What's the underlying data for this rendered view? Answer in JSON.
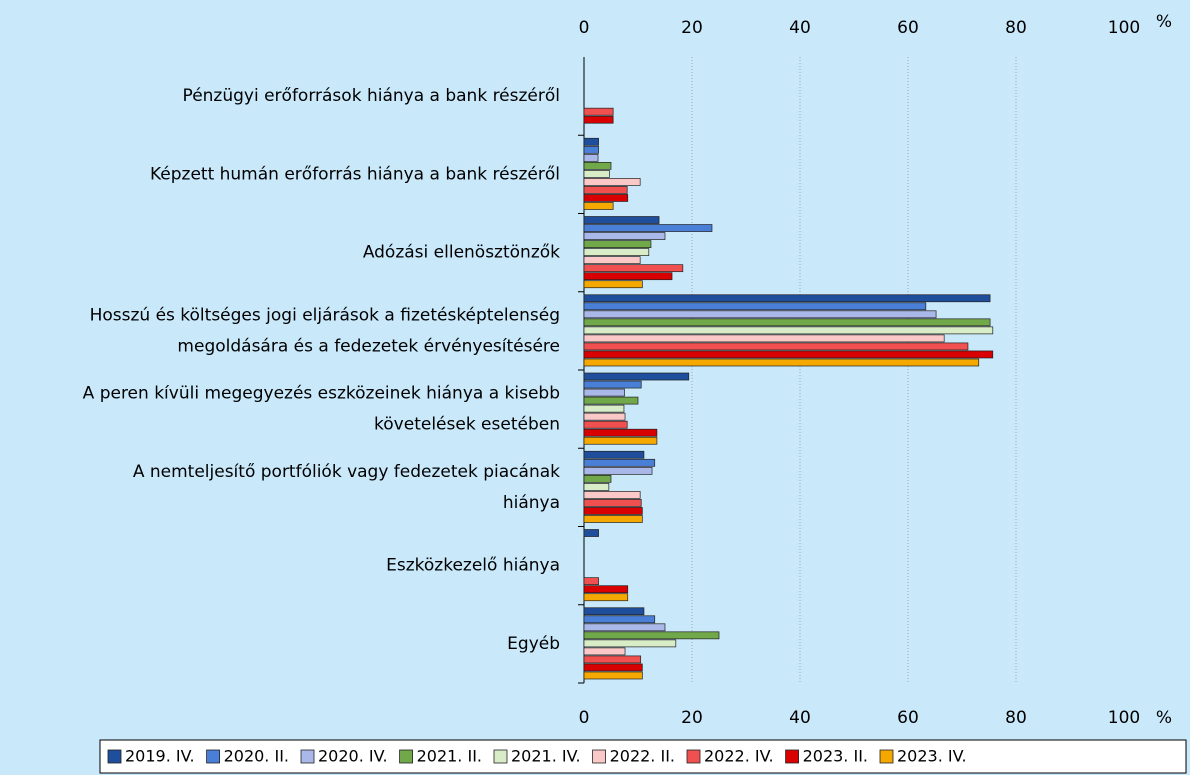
{
  "chart_data": {
    "type": "hbar",
    "categories": [
      [
        "Pénzügyi erőforrások hiánya a bank részéről"
      ],
      [
        "Képzett humán erőforrás hiánya a bank részéről"
      ],
      [
        "Adózási ellenösztönzők"
      ],
      [
        "Hosszú és költséges jogi eljárások a fizetésképtelenség",
        "megoldására és a fedezetek érvényesítésére"
      ],
      [
        "A peren kívüli megegyezés eszközeinek hiánya a kisebb",
        "követelések esetében"
      ],
      [
        "A nemteljesítő portfóliók vagy fedezetek piacának",
        "hiánya"
      ],
      [
        "Eszközkezelő hiánya"
      ],
      [
        "Egyéb"
      ]
    ],
    "series": [
      {
        "name": "2019. IV.",
        "color": "#1f4e9c",
        "values": [
          0,
          2.7,
          13.9,
          75.2,
          19.4,
          11.1,
          2.7,
          11.1
        ]
      },
      {
        "name": "2020. II.",
        "color": "#4a7fd8",
        "values": [
          0,
          2.7,
          23.7,
          63.3,
          10.6,
          13.1,
          0,
          13.1
        ]
      },
      {
        "name": "2020. IV.",
        "color": "#a9b8e8",
        "values": [
          0,
          2.6,
          15.0,
          65.2,
          7.5,
          12.6,
          0,
          15.0
        ]
      },
      {
        "name": "2021. II.",
        "color": "#70a84a",
        "values": [
          0,
          5.0,
          12.4,
          75.2,
          10.0,
          5.0,
          0,
          25.0
        ]
      },
      {
        "name": "2021. IV.",
        "color": "#d8ecc8",
        "values": [
          0,
          4.7,
          12.0,
          75.7,
          7.4,
          4.6,
          0,
          17.0
        ]
      },
      {
        "name": "2022. II.",
        "color": "#fbc8c8",
        "values": [
          0,
          10.4,
          10.4,
          66.7,
          7.6,
          10.4,
          0,
          7.6
        ]
      },
      {
        "name": "2022. IV.",
        "color": "#f0504f",
        "values": [
          5.4,
          8.0,
          18.3,
          71.1,
          8.0,
          10.6,
          2.7,
          10.5
        ]
      },
      {
        "name": "2023. II.",
        "color": "#d80000",
        "values": [
          5.4,
          8.1,
          16.3,
          75.7,
          13.5,
          10.8,
          8.1,
          10.8
        ]
      },
      {
        "name": "2023. IV.",
        "color": "#f5a800",
        "values": [
          0,
          5.4,
          10.8,
          73.1,
          13.5,
          10.8,
          8.1,
          10.8
        ]
      }
    ],
    "xlim": [
      0,
      100
    ],
    "xticks": [
      0,
      20,
      40,
      60,
      80,
      100
    ],
    "x_unit": "%",
    "grid": true
  }
}
